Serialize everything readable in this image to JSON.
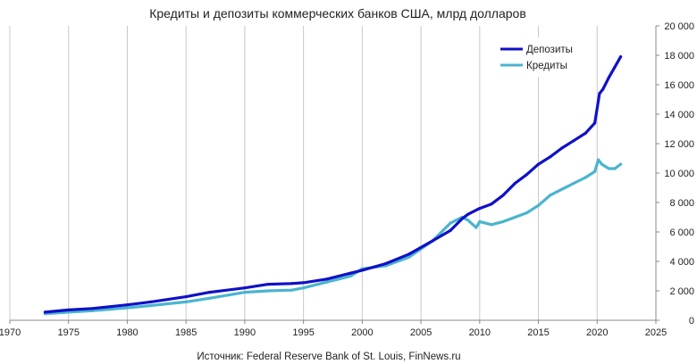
{
  "chart_data": {
    "type": "line",
    "title": "Кредиты и депозиты коммерческих банков США, млрд долларов",
    "source": "Источник: Federal Reserve Bank of St. Louis, FinNews.ru",
    "xlim": [
      1970,
      2025
    ],
    "ylim": [
      0,
      20000
    ],
    "x_ticks": [
      1970,
      1975,
      1980,
      1985,
      1990,
      1995,
      2000,
      2005,
      2010,
      2015,
      2020,
      2025
    ],
    "y_ticks": [
      0,
      2000,
      4000,
      6000,
      8000,
      10000,
      12000,
      14000,
      16000,
      18000,
      20000
    ],
    "y_tick_labels": [
      "0",
      "2 000",
      "4 000",
      "6 000",
      "8 000",
      "10 000",
      "12 000",
      "14 000",
      "16 000",
      "18 000",
      "20 000"
    ],
    "y_axis_side": "right",
    "grid": "vertical",
    "legend_position": "top-right",
    "colors": {
      "deposits": "#1010c8",
      "credits": "#4bb4cf",
      "grid": "#c8c8c8",
      "axis": "#888888"
    },
    "series": [
      {
        "name": "Депозиты",
        "x": [
          1973.0,
          1975.0,
          1977.0,
          1980.0,
          1982.0,
          1985.0,
          1987.0,
          1990.0,
          1992.0,
          1994.0,
          1995.0,
          1997.0,
          1999.0,
          2000.0,
          2002.0,
          2004.0,
          2006.0,
          2007.5,
          2008.5,
          2009.0,
          2010.0,
          2011.0,
          2012.0,
          2013.0,
          2014.0,
          2015.0,
          2016.0,
          2017.0,
          2018.0,
          2019.0,
          2019.8,
          2020.2,
          2020.5,
          2021.0,
          2021.5,
          2022.0
        ],
        "values": [
          550,
          700,
          800,
          1050,
          1250,
          1600,
          1900,
          2200,
          2450,
          2500,
          2550,
          2800,
          3200,
          3400,
          3850,
          4500,
          5400,
          6100,
          6900,
          7200,
          7600,
          7900,
          8500,
          9300,
          9900,
          10600,
          11100,
          11700,
          12200,
          12700,
          13400,
          15400,
          15700,
          16500,
          17200,
          17900
        ]
      },
      {
        "name": "Кредиты",
        "x": [
          1973.0,
          1975.0,
          1977.0,
          1980.0,
          1982.0,
          1985.0,
          1987.0,
          1990.0,
          1992.0,
          1994.0,
          1995.0,
          1997.0,
          1999.0,
          2000.0,
          2002.0,
          2004.0,
          2006.0,
          2007.5,
          2008.5,
          2009.0,
          2009.7,
          2010.0,
          2011.0,
          2012.0,
          2013.0,
          2014.0,
          2015.0,
          2016.0,
          2017.0,
          2018.0,
          2019.0,
          2019.8,
          2020.1,
          2020.4,
          2021.0,
          2021.5,
          2022.0
        ],
        "values": [
          450,
          550,
          650,
          850,
          1000,
          1250,
          1500,
          1900,
          2000,
          2050,
          2200,
          2600,
          3000,
          3500,
          3700,
          4300,
          5400,
          6600,
          7000,
          6800,
          6300,
          6700,
          6500,
          6700,
          7000,
          7300,
          7800,
          8500,
          8900,
          9300,
          9700,
          10100,
          10900,
          10600,
          10300,
          10300,
          10600
        ]
      }
    ]
  }
}
